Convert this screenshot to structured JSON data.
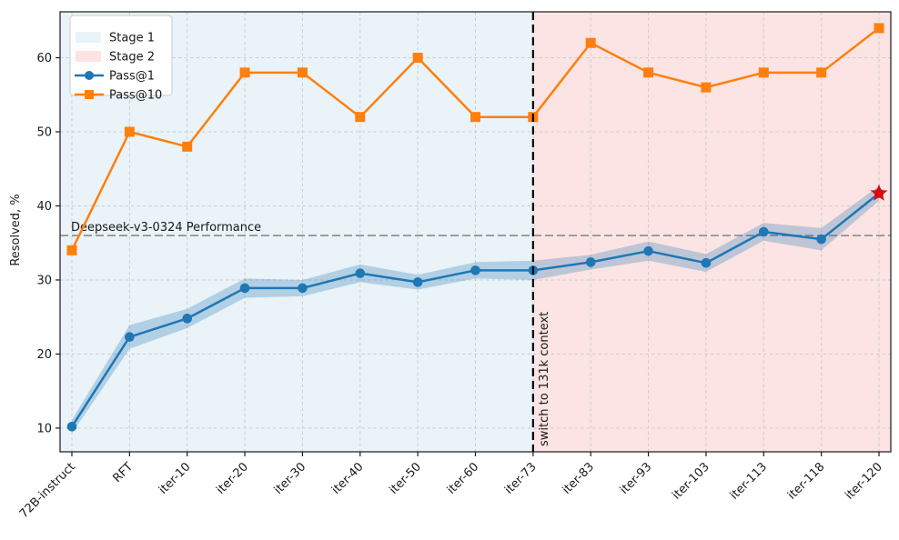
{
  "chart_data": {
    "type": "line",
    "title": "",
    "xlabel": "",
    "ylabel": "Resolved, %",
    "categories": [
      "72B-instruct",
      "RFT",
      "iter-10",
      "iter-20",
      "iter-30",
      "iter-40",
      "iter-50",
      "iter-60",
      "iter-73",
      "iter-83",
      "iter-93",
      "iter-103",
      "iter-113",
      "iter-118",
      "iter-120"
    ],
    "yticks": [
      10,
      20,
      30,
      40,
      50,
      60
    ],
    "ylim": [
      6.8,
      66.2
    ],
    "grid": true,
    "grid_color": "#cdcdcd",
    "series": [
      {
        "name": "Pass@1",
        "color": "#1f77b4",
        "marker": "circle",
        "values": [
          10.2,
          22.3,
          24.8,
          28.9,
          28.9,
          30.9,
          29.7,
          31.3,
          31.3,
          32.4,
          33.9,
          32.3,
          36.5,
          35.5,
          41.7
        ],
        "band_halfwidth": [
          0.9,
          1.6,
          1.3,
          1.3,
          1.1,
          1.2,
          1.0,
          1.1,
          1.3,
          1.0,
          1.3,
          1.2,
          1.2,
          1.5,
          1.0
        ],
        "band_opacity": 0.28
      },
      {
        "name": "Pass@10",
        "color": "#ff7f0e",
        "marker": "square",
        "values": [
          34,
          50,
          48,
          58,
          58,
          52,
          60,
          52,
          52,
          62,
          58,
          56,
          58,
          58,
          64
        ]
      }
    ],
    "regions": [
      {
        "name": "Stage 1",
        "start_index": 0,
        "end_index": 8,
        "color": "#e9f3f8"
      },
      {
        "name": "Stage 2",
        "start_index": 8,
        "end_index": 14,
        "color": "#fbe4e3"
      }
    ],
    "hline": {
      "value": 36,
      "label": "Deepseek-v3-0324 Performance",
      "color": "#8a8a8a"
    },
    "vline": {
      "at_category": "iter-73",
      "label": "switch to 131k context",
      "color": "#000000"
    },
    "star": {
      "series": "Pass@1",
      "category": "iter-120",
      "color": "#e8000b"
    },
    "legend": {
      "position": "upper-left",
      "entries": [
        "Stage 1",
        "Stage 2",
        "Pass@1",
        "Pass@10"
      ]
    }
  }
}
